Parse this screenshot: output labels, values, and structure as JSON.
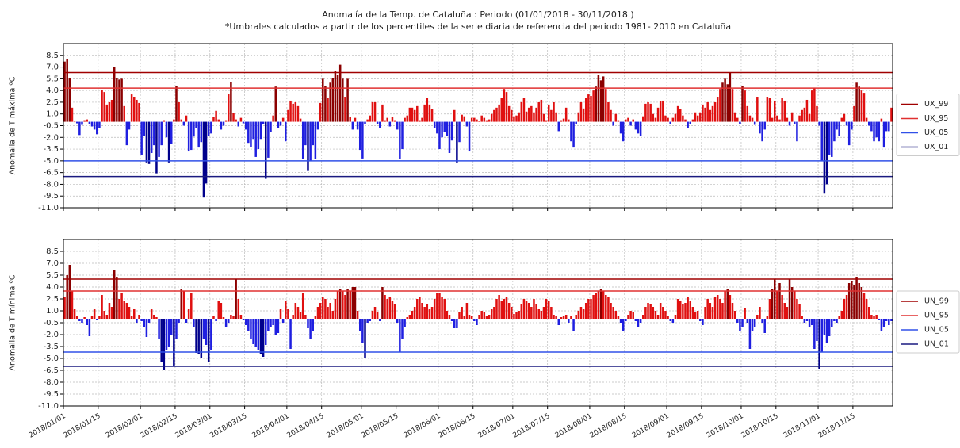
{
  "chart_data": [
    {
      "type": "bar",
      "title": "Anomalía de la Temp.  de Cataluña  : Periodo (01/01/2018 - 30/11/2018 )",
      "subtitle": "*Umbrales calculados a partir de los percentiles de la serie diaria  de referencia del periodo  1981- 2010 en Cataluña",
      "ylabel": "Anomalia de T máxima ºC",
      "ylim": [
        -11,
        10
      ],
      "yticks": [
        8.5,
        {
          "value": 7,
          "label": "7.0"
        },
        5.5,
        {
          "value": 4,
          "label": "4.0"
        },
        2.5,
        {
          "value": 1,
          "label": "1.0"
        },
        -0.5,
        {
          "value": -2,
          "label": "-2.0"
        },
        -3.5,
        {
          "value": -5,
          "label": "-5.0"
        },
        -6.5,
        {
          "value": -8,
          "label": "-8.0"
        },
        -9.5,
        {
          "value": -11,
          "label": "-11.0"
        }
      ],
      "xlim": [
        0,
        334
      ],
      "xticks": [
        0,
        14,
        31,
        45,
        59,
        73,
        90,
        104,
        120,
        134,
        151,
        165,
        181,
        195,
        212,
        226,
        243,
        257,
        273,
        287,
        304,
        318
      ],
      "grid": true,
      "legend": "right",
      "bar_colors": {
        "high": "#8b0000",
        "positive": "#e01010",
        "negative": "#1f1fe0",
        "low": "#00008b"
      },
      "thresholds": [
        {
          "name": "UX_99",
          "color": "#a00000",
          "value": 6.3
        },
        {
          "name": "UX_95",
          "color": "#e03030",
          "value": 4.3
        },
        {
          "name": "UX_05",
          "color": "#3050e8",
          "value": -5.0
        },
        {
          "name": "UX_01",
          "color": "#1a1a80",
          "value": -7.0
        }
      ],
      "values": [
        7.7,
        8.0,
        5.6,
        1.8,
        0,
        -0.2,
        -1.7,
        -0.4,
        0.2,
        0.3,
        -0.3,
        -0.6,
        -1.0,
        -1.6,
        -0.8,
        4.1,
        3.8,
        2.2,
        2.5,
        2.8,
        7.0,
        5.6,
        5.4,
        5.5,
        2.0,
        -3.0,
        -1.0,
        3.5,
        3.2,
        2.8,
        2.4,
        -4.2,
        -1.8,
        -5.2,
        -5.4,
        -4.0,
        -3.0,
        -6.6,
        -4.5,
        -3.0,
        0.2,
        -2.0,
        -5.2,
        -2.8,
        0.3,
        4.6,
        2.5,
        0.3,
        -0.5,
        0.8,
        -3.8,
        -3.6,
        -1.9,
        -0.8,
        -3.3,
        -2.6,
        -9.7,
        -7.9,
        -1.8,
        -1.5,
        0.6,
        1.4,
        0.3,
        -1.0,
        -0.5,
        0.2,
        3.6,
        5.1,
        1.1,
        0.3,
        -0.6,
        0.5,
        -0.2,
        -1.0,
        -2.7,
        -3.2,
        -2.2,
        -4.5,
        -3.5,
        -2.2,
        -0.3,
        -7.3,
        -4.6,
        -1.3,
        0.8,
        4.5,
        -0.8,
        -0.5,
        0.5,
        -2.5,
        1.5,
        2.7,
        2.3,
        2.5,
        2.0,
        0.4,
        -4.8,
        -3.0,
        -6.3,
        -5.0,
        -3.0,
        -4.8,
        -1.0,
        2.4,
        5.5,
        4.6,
        3.0,
        5.0,
        5.6,
        6.5,
        6.0,
        7.3,
        5.5,
        3.2,
        5.5,
        0.6,
        -1.0,
        0.5,
        -1.0,
        -3.6,
        -4.7,
        -0.3,
        0.3,
        0.8,
        2.5,
        2.5,
        -0.3,
        -0.8,
        2.2,
        0.2,
        0.5,
        -0.6,
        0.6,
        0.2,
        -1.0,
        -4.8,
        -3.5,
        0.5,
        0.8,
        1.8,
        1.8,
        1.5,
        2.0,
        0.2,
        0.5,
        2.2,
        3.0,
        2.2,
        1.6,
        -0.8,
        -1.5,
        -3.5,
        -2.0,
        -1.3,
        -1.8,
        -4.0,
        -2.4,
        1.5,
        -5.2,
        -2.6,
        0.9,
        0.7,
        -0.6,
        -3.8,
        0.5,
        0.5,
        0.3,
        0.1,
        0.8,
        0.5,
        0.2,
        0.3,
        1.0,
        1.5,
        1.8,
        2.2,
        3.0,
        4.2,
        3.8,
        2.0,
        1.5,
        0.7,
        0.8,
        1.2,
        2.5,
        3.0,
        1.3,
        1.8,
        2.0,
        1.2,
        1.8,
        2.5,
        2.8,
        1.0,
        0.2,
        2.2,
        1.5,
        2.5,
        1.2,
        -1.2,
        0.2,
        0.4,
        1.8,
        0.3,
        -2.5,
        -3.3,
        -0.3,
        1.2,
        2.5,
        1.7,
        3.0,
        3.5,
        3.3,
        4.0,
        4.5,
        6.0,
        5.3,
        5.8,
        4.2,
        2.5,
        1.5,
        -0.5,
        1.0,
        0.2,
        -1.5,
        -2.5,
        0.3,
        0.5,
        -0.5,
        0.3,
        -1.0,
        -1.5,
        -1.8,
        0.7,
        2.3,
        2.5,
        2.3,
        1.0,
        0.5,
        1.8,
        2.6,
        2.7,
        0.8,
        0.5,
        -0.3,
        0.5,
        1.0,
        2.0,
        1.6,
        0.8,
        0.3,
        -0.8,
        -0.3,
        0.3,
        1.2,
        0.8,
        1.2,
        2.2,
        1.8,
        2.5,
        1.5,
        2.0,
        2.5,
        3.2,
        4.2,
        5.0,
        5.5,
        4.8,
        6.3,
        4.2,
        1.2,
        0.5,
        -0.3,
        4.6,
        4.0,
        2.0,
        0.8,
        0.5,
        -0.4,
        3.2,
        -1.5,
        -2.5,
        -1.0,
        3.2,
        3.1,
        0.5,
        2.7,
        0.8,
        0.3,
        3.0,
        2.7,
        0.5,
        -0.5,
        1.2,
        -0.3,
        -2.5,
        0.8,
        1.5,
        1.8,
        2.8,
        1.0,
        4.0,
        4.3,
        2.0,
        -0.5,
        -5.0,
        -9.2,
        -8.0,
        -4.2,
        -4.5,
        -2.5,
        -1.0,
        -1.8,
        0.5,
        1.0,
        -0.5,
        -3.0,
        -1.0,
        2.0,
        5.0,
        4.5,
        4.0,
        3.7,
        0.5,
        -0.5,
        -1.2,
        -2.5,
        -2.0,
        -2.5,
        0.4,
        -3.3,
        -1.2,
        -1.2,
        1.8
      ]
    },
    {
      "type": "bar",
      "ylabel": "Anomalia de T mínima ºC",
      "ylim": [
        -11,
        10
      ],
      "yticks": [
        8.5,
        {
          "value": 7,
          "label": "7.0"
        },
        5.5,
        {
          "value": 4,
          "label": "4.0"
        },
        2.5,
        {
          "value": 1,
          "label": "1.0"
        },
        -0.5,
        {
          "value": -2,
          "label": "-2.0"
        },
        -3.5,
        {
          "value": -5,
          "label": "-5.0"
        },
        -6.5,
        {
          "value": -8,
          "label": "-8.0"
        },
        -9.5,
        {
          "value": -11,
          "label": "-11.0"
        }
      ],
      "xlim": [
        0,
        334
      ],
      "xticks": [
        {
          "value": 0,
          "label": "2018/01/01"
        },
        {
          "value": 14,
          "label": "2018/01/15"
        },
        {
          "value": 31,
          "label": "2018/02/01"
        },
        {
          "value": 45,
          "label": "2018/02/15"
        },
        {
          "value": 59,
          "label": "2018/03/01"
        },
        {
          "value": 73,
          "label": "2018/03/15"
        },
        {
          "value": 90,
          "label": "2018/04/01"
        },
        {
          "value": 104,
          "label": "2018/04/15"
        },
        {
          "value": 120,
          "label": "2018/05/01"
        },
        {
          "value": 134,
          "label": "2018/05/15"
        },
        {
          "value": 151,
          "label": "2018/06/01"
        },
        {
          "value": 165,
          "label": "2018/06/15"
        },
        {
          "value": 181,
          "label": "2018/07/01"
        },
        {
          "value": 195,
          "label": "2018/07/15"
        },
        {
          "value": 212,
          "label": "2018/08/01"
        },
        {
          "value": 226,
          "label": "2018/08/15"
        },
        {
          "value": 243,
          "label": "2018/09/01"
        },
        {
          "value": 257,
          "label": "2018/09/15"
        },
        {
          "value": 273,
          "label": "2018/10/01"
        },
        {
          "value": 287,
          "label": "2018/10/15"
        },
        {
          "value": 304,
          "label": "2018/11/01"
        },
        {
          "value": 318,
          "label": "2018/11/15"
        }
      ],
      "grid": true,
      "legend": "right",
      "bar_colors": {
        "high": "#8b0000",
        "positive": "#e01010",
        "negative": "#1f1fe0",
        "low": "#00008b"
      },
      "thresholds": [
        {
          "name": "UN_99",
          "color": "#a00000",
          "value": 5.0
        },
        {
          "name": "UN_95",
          "color": "#e03030",
          "value": 3.5
        },
        {
          "name": "UN_05",
          "color": "#3050e8",
          "value": -4.2
        },
        {
          "name": "UN_01",
          "color": "#1a1a80",
          "value": -6.0
        }
      ],
      "values": [
        2.8,
        5.5,
        6.8,
        3.5,
        1.2,
        0.3,
        -0.3,
        -0.5,
        0.2,
        -0.8,
        -2.2,
        0.4,
        1.2,
        -0.2,
        0.3,
        3.0,
        1.0,
        0.5,
        2.0,
        1.5,
        6.2,
        5.3,
        2.5,
        3.3,
        2.2,
        2.0,
        1.5,
        0.3,
        1.2,
        -0.5,
        0.5,
        -0.3,
        -1.0,
        -2.3,
        -0.5,
        1.2,
        0.5,
        0.2,
        -2.5,
        -5.5,
        -6.5,
        -4.0,
        -3.5,
        -2.0,
        -6.0,
        -2.5,
        -0.5,
        3.8,
        3.5,
        -0.5,
        1.2,
        3.3,
        -1.0,
        -4.3,
        -4.5,
        -5.0,
        -2.5,
        -3.3,
        -5.5,
        -4.0,
        0.3,
        -0.3,
        2.2,
        2.0,
        0.2,
        -1.0,
        -0.5,
        0.5,
        0.3,
        5.0,
        2.5,
        0.5,
        -0.2,
        -0.8,
        -1.5,
        -2.5,
        -3.2,
        -3.5,
        -4.0,
        -4.5,
        -4.8,
        -3.3,
        -1.5,
        -1.0,
        -0.8,
        -2.0,
        -1.8,
        1.2,
        -0.5,
        2.3,
        1.2,
        -3.8,
        0.5,
        2.0,
        1.5,
        0.8,
        3.3,
        0.5,
        -1.2,
        -2.5,
        -1.5,
        0.3,
        1.5,
        2.0,
        2.8,
        2.5,
        1.5,
        2.0,
        1.0,
        2.5,
        3.5,
        3.8,
        3.5,
        3.0,
        3.7,
        3.5,
        4.0,
        4.0,
        1.0,
        -1.5,
        -3.0,
        -5.0,
        -0.5,
        -0.3,
        1.0,
        1.5,
        0.8,
        -0.3,
        4.0,
        3.0,
        2.5,
        2.8,
        2.2,
        1.8,
        -0.5,
        -4.2,
        -2.5,
        -1.0,
        0.2,
        0.5,
        1.0,
        1.5,
        2.5,
        2.8,
        2.0,
        1.5,
        1.8,
        1.2,
        1.5,
        2.5,
        3.2,
        3.2,
        2.8,
        2.5,
        1.0,
        0.5,
        -0.3,
        -1.2,
        -1.2,
        0.8,
        1.5,
        0.3,
        2.0,
        0.5,
        0.3,
        -0.3,
        -0.8,
        0.5,
        1.0,
        0.8,
        0.3,
        0.5,
        1.2,
        1.5,
        2.5,
        3.0,
        2.2,
        2.5,
        2.8,
        2.0,
        1.5,
        0.6,
        0.8,
        1.0,
        1.8,
        2.5,
        2.3,
        2.0,
        1.5,
        2.5,
        1.8,
        1.2,
        1.0,
        1.5,
        2.5,
        2.3,
        1.5,
        0.5,
        0.3,
        -0.8,
        0.2,
        0.3,
        0.5,
        -0.5,
        0.3,
        -1.5,
        0.5,
        1.0,
        1.5,
        1.2,
        2.0,
        2.5,
        2.5,
        3.0,
        3.3,
        3.5,
        3.8,
        3.5,
        3.0,
        2.8,
        2.0,
        1.5,
        1.0,
        0.3,
        -0.5,
        -1.5,
        -0.3,
        0.5,
        1.0,
        0.8,
        -0.3,
        -1.0,
        -0.5,
        0.5,
        1.5,
        2.0,
        1.8,
        1.5,
        1.0,
        0.5,
        2.0,
        1.5,
        1.0,
        0.3,
        -0.3,
        -0.5,
        0.5,
        2.5,
        2.3,
        1.8,
        2.0,
        2.8,
        2.2,
        1.5,
        0.8,
        1.0,
        -0.3,
        -0.8,
        1.5,
        2.5,
        2.0,
        1.5,
        2.8,
        3.0,
        2.5,
        2.0,
        3.5,
        3.8,
        3.0,
        2.0,
        1.0,
        -0.5,
        -1.5,
        -1.0,
        1.3,
        -0.5,
        -3.8,
        -1.5,
        -1.0,
        0.5,
        1.5,
        -0.5,
        -1.8,
        0.3,
        2.5,
        3.8,
        5.0,
        3.5,
        4.5,
        3.0,
        2.0,
        1.5,
        5.0,
        4.0,
        3.5,
        2.5,
        1.8,
        0.3,
        -0.5,
        -0.3,
        -1.0,
        -0.8,
        -3.8,
        -2.8,
        -6.3,
        -4.2,
        -2.0,
        -3.0,
        -2.2,
        -1.0,
        -0.3,
        -0.5,
        0.3,
        1.0,
        2.5,
        3.0,
        4.5,
        4.8,
        4.2,
        5.3,
        4.5,
        4.0,
        3.3,
        2.5,
        1.5,
        0.5,
        0.3,
        0.5,
        -0.2,
        -1.5,
        -1.0,
        -0.3,
        -0.8,
        -0.3
      ]
    }
  ]
}
